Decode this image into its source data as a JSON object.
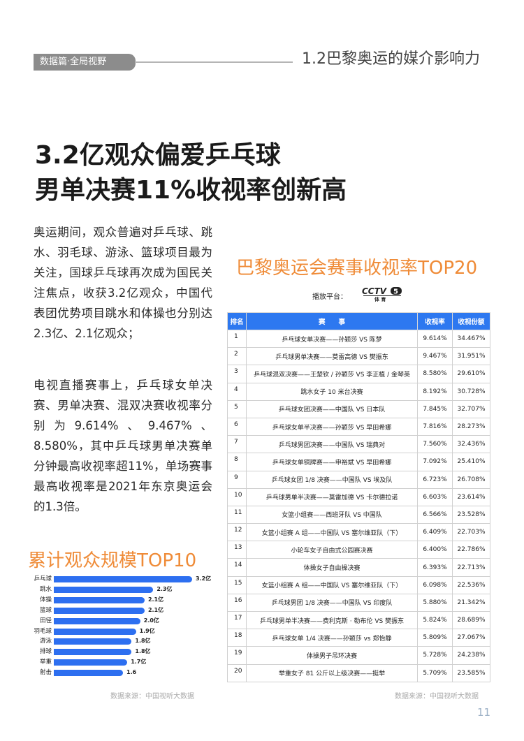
{
  "header": {
    "tag": "数据篇·全局视野",
    "section": "1.2巴黎奥运的媒介影响力"
  },
  "headline": {
    "line1": "3.2亿观众偏爱乒乓球",
    "line2": "男单决赛11%收视率创新高"
  },
  "paragraphs": [
    "奥运期间，观众普遍对乒乓球、跳水、羽毛球、游泳、篮球项目最为关注，国球乒乓球再次成为国民关注焦点，收获3.2亿观众，中国代表团优势项目跳水和体操也分别达2.3亿、2.1亿观众；",
    "电视直播赛事上，乒乓球女单决赛、男单决赛、混双决赛收视率分别为9.614%、9.467%、8.580%，其中乒乓球男单决赛单分钟最高收视率超11%，单场赛事最高收视率是2021年东京奥运会的1.3倍。"
  ],
  "chart_data": {
    "type": "bar",
    "orientation": "horizontal",
    "title": "累计观众规模TOP10",
    "categories": [
      "乒乓球",
      "跳水",
      "体操",
      "篮球",
      "田径",
      "羽毛球",
      "游泳",
      "排球",
      "举重",
      "射击"
    ],
    "values": [
      3.2,
      2.3,
      2.1,
      2.1,
      2.0,
      1.9,
      1.8,
      1.8,
      1.7,
      1.6
    ],
    "value_labels": [
      "3.2亿",
      "2.3亿",
      "2.1亿",
      "2.1亿",
      "2.0亿",
      "1.9亿",
      "1.8亿",
      "1.8亿",
      "1.7亿",
      "1.6"
    ],
    "unit": "亿",
    "bar_color": "#2d6ff0",
    "source": "数据来源：中国视听大数据"
  },
  "table": {
    "title": "巴黎奥运会赛事收视率TOP20",
    "platform_label": "播放平台：",
    "platform_logo": "CCTV5 体育",
    "headers": [
      "排名",
      "赛　　事",
      "收视率",
      "收视份额"
    ],
    "rows": [
      [
        "1",
        "乒乓球女单决赛——孙颖莎 VS 陈梦",
        "9.614%",
        "34.467%"
      ],
      [
        "2",
        "乒乓球男单决赛——莫雷高德 VS 樊振东",
        "9.467%",
        "31.951%"
      ],
      [
        "3",
        "乒乓球混双决赛——王楚钦 / 孙颖莎 VS 李正植 / 金琴英",
        "8.580%",
        "29.610%"
      ],
      [
        "4",
        "跳水女子 10 米台决赛",
        "8.192%",
        "30.728%"
      ],
      [
        "5",
        "乒乓球女团决赛——中国队 VS 日本队",
        "7.845%",
        "32.707%"
      ],
      [
        "6",
        "乒乓球女单半决赛——孙颖莎 VS 早田希娜",
        "7.816%",
        "28.273%"
      ],
      [
        "7",
        "乒乓球男团决赛——中国队 VS 瑞典对",
        "7.560%",
        "32.436%"
      ],
      [
        "8",
        "乒乓球女单铜牌赛——申裕斌 VS 早田希娜",
        "7.092%",
        "25.410%"
      ],
      [
        "9",
        "乒乓球女团 1/8 决赛——中国队 VS 埃及队",
        "6.723%",
        "26.708%"
      ],
      [
        "10",
        "乒乓球男单半决赛——莫雷加德 VS 卡尔德拉诺",
        "6.603%",
        "23.614%"
      ],
      [
        "11",
        "女篮小组赛——西班牙队 VS 中国队",
        "6.566%",
        "23.528%"
      ],
      [
        "12",
        "女篮小组赛 A 组——中国队 VS 塞尔维亚队（下）",
        "6.409%",
        "22.703%"
      ],
      [
        "13",
        "小轮车女子自由式公园赛决赛",
        "6.400%",
        "22.786%"
      ],
      [
        "14",
        "体操女子自由操决赛",
        "6.393%",
        "22.713%"
      ],
      [
        "15",
        "女篮小组赛 A 组——中国队 VS 塞尔维亚队（下）",
        "6.098%",
        "22.536%"
      ],
      [
        "16",
        "乒乓球男团 1/8 决赛——中国队 VS 印度队",
        "5.880%",
        "21.342%"
      ],
      [
        "17",
        "乒乓球男单半决赛——费利克斯 · 勒布伦 VS 樊振东",
        "5.824%",
        "28.689%"
      ],
      [
        "18",
        "乒乓球女单 1/4 决赛——孙颖莎 vs 郑怡静",
        "5.809%",
        "27.067%"
      ],
      [
        "19",
        "体操男子吊环决赛",
        "5.728%",
        "24.238%"
      ],
      [
        "20",
        "举重女子 81 公斤以上级决赛——挺举",
        "5.709%",
        "23.585%"
      ]
    ],
    "source": "数据来源：中国视听大数据",
    "header_color": "#2d78f0",
    "title_color": "#ef8b37"
  },
  "page_number": "11"
}
